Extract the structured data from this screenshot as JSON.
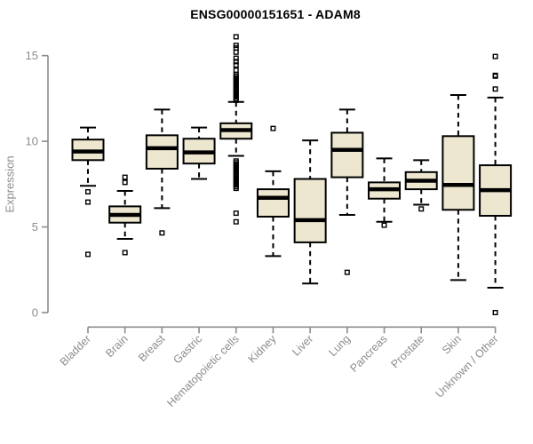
{
  "title": "ENSG00000151651 - ADAM8",
  "colors": {
    "box_fill": "#EDE7D0",
    "box_border": "#000000",
    "median": "#000000",
    "whisker": "#000000",
    "outlier": "#000000",
    "axis": "#8c8c8c",
    "tick_label": "#8c8c8c",
    "title": "#000000",
    "background": "#ffffff"
  },
  "chart_data": {
    "type": "boxplot",
    "title": "ENSG00000151651 - ADAM8",
    "xlabel": "",
    "ylabel": "Expression",
    "ylim": [
      0,
      16.2
    ],
    "yticks": [
      0,
      5,
      10,
      15
    ],
    "grid": false,
    "legend": "none",
    "categories": [
      "Bladder",
      "Brain",
      "Breast",
      "Gastric",
      "Hematopoietic cells",
      "Kidney",
      "Liver",
      "Lung",
      "Pancreas",
      "Prostate",
      "Skin",
      "Unknown / Other"
    ],
    "boxes": [
      {
        "name": "Bladder",
        "whisker_low": 7.4,
        "q1": 8.9,
        "median": 9.4,
        "q3": 10.1,
        "whisker_high": 10.8,
        "outliers": [
          7.05,
          6.45,
          3.4
        ]
      },
      {
        "name": "Brain",
        "whisker_low": 4.3,
        "q1": 5.25,
        "median": 5.7,
        "q3": 6.2,
        "whisker_high": 7.1,
        "outliers": [
          7.9,
          7.6,
          3.5
        ]
      },
      {
        "name": "Breast",
        "whisker_low": 6.1,
        "q1": 8.4,
        "median": 9.6,
        "q3": 10.35,
        "whisker_high": 11.85,
        "outliers": [
          4.65
        ]
      },
      {
        "name": "Gastric",
        "whisker_low": 7.8,
        "q1": 8.7,
        "median": 9.35,
        "q3": 10.15,
        "whisker_high": 10.8,
        "outliers": []
      },
      {
        "name": "Hematopoietic cells",
        "whisker_low": 9.15,
        "q1": 10.15,
        "median": 10.65,
        "q3": 11.05,
        "whisker_high": 12.3,
        "outliers": [
          16.1,
          15.6,
          15.45,
          15.2,
          14.85,
          14.65,
          14.45,
          14.15,
          13.9,
          13.8,
          13.7,
          13.6,
          13.5,
          13.4,
          13.3,
          13.2,
          13.1,
          13.0,
          12.9,
          12.8,
          12.7,
          12.6,
          12.5,
          12.4,
          8.85,
          8.75,
          8.65,
          8.55,
          8.45,
          8.35,
          8.25,
          8.15,
          8.05,
          7.95,
          7.85,
          7.75,
          7.65,
          7.55,
          7.45,
          7.35,
          7.25,
          5.8,
          5.3
        ]
      },
      {
        "name": "Kidney",
        "whisker_low": 3.3,
        "q1": 5.6,
        "median": 6.7,
        "q3": 7.2,
        "whisker_high": 8.25,
        "outliers": [
          10.75
        ]
      },
      {
        "name": "Liver",
        "whisker_low": 1.7,
        "q1": 4.1,
        "median": 5.4,
        "q3": 7.8,
        "whisker_high": 10.05,
        "outliers": []
      },
      {
        "name": "Lung",
        "whisker_low": 5.7,
        "q1": 7.9,
        "median": 9.5,
        "q3": 10.5,
        "whisker_high": 11.85,
        "outliers": [
          2.35
        ]
      },
      {
        "name": "Pancreas",
        "whisker_low": 5.3,
        "q1": 6.65,
        "median": 7.2,
        "q3": 7.6,
        "whisker_high": 9.0,
        "outliers": [
          5.1
        ]
      },
      {
        "name": "Prostate",
        "whisker_low": 6.3,
        "q1": 7.2,
        "median": 7.7,
        "q3": 8.2,
        "whisker_high": 8.9,
        "outliers": [
          6.05
        ]
      },
      {
        "name": "Skin",
        "whisker_low": 1.9,
        "q1": 6.0,
        "median": 7.45,
        "q3": 10.3,
        "whisker_high": 12.7,
        "outliers": []
      },
      {
        "name": "Unknown / Other",
        "whisker_low": 1.45,
        "q1": 5.65,
        "median": 7.15,
        "q3": 8.6,
        "whisker_high": 12.55,
        "outliers": [
          14.95,
          13.85,
          13.8,
          13.05,
          0.0
        ]
      }
    ]
  }
}
